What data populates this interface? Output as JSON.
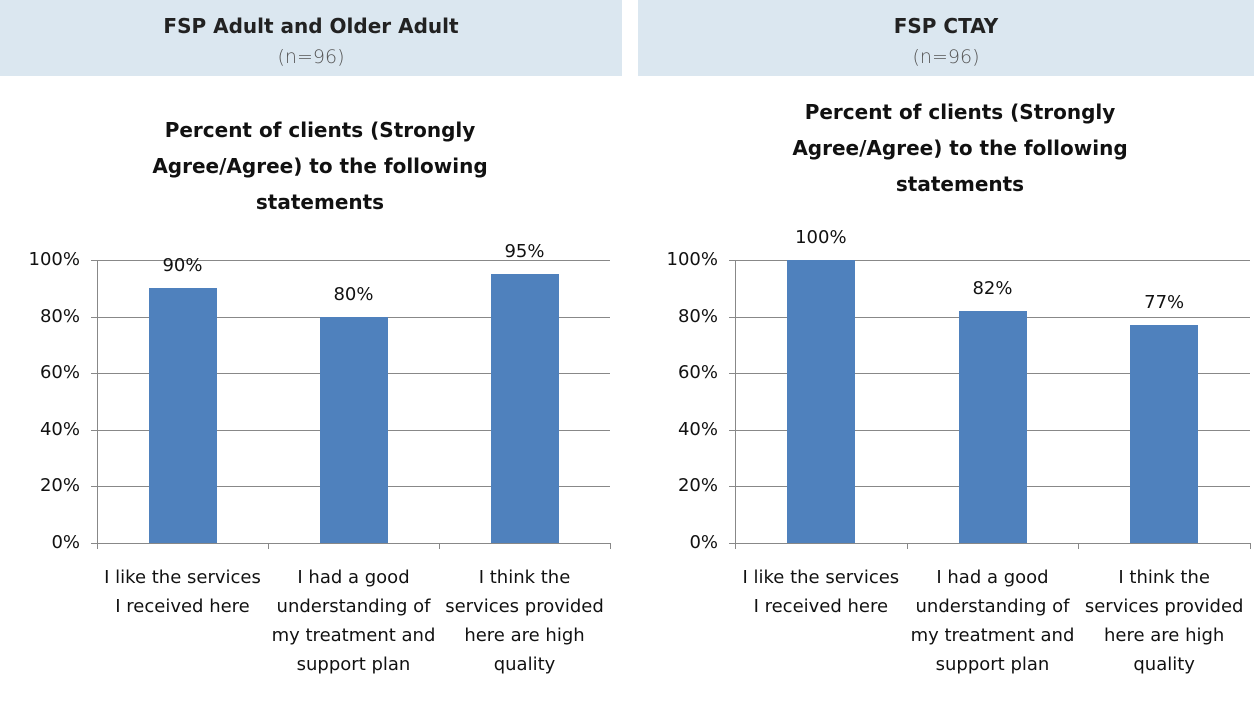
{
  "chart_data": [
    {
      "type": "bar",
      "panel_title": "FSP Adult and Older Adult",
      "panel_subtitle": "(n=96)",
      "title": "Percent of clients (Strongly Agree/Agree) to the following statements",
      "categories": [
        "I like the services I received here",
        "I had a good understanding of my treatment and support plan",
        "I think the services provided here are high quality"
      ],
      "values": [
        90,
        80,
        95
      ],
      "value_labels": [
        "90%",
        "80%",
        "95%"
      ],
      "color": "#4f81bd",
      "ylim": [
        0,
        100
      ],
      "yticks": [
        {
          "value": 0,
          "label": "0%"
        },
        {
          "value": 20,
          "label": "20%"
        },
        {
          "value": 40,
          "label": "40%"
        },
        {
          "value": 60,
          "label": "60%"
        },
        {
          "value": 80,
          "label": "80%"
        },
        {
          "value": 100,
          "label": "100%"
        }
      ],
      "grid": true
    },
    {
      "type": "bar",
      "panel_title": "FSP CTAY",
      "panel_subtitle": "(n=96)",
      "title": "Percent of clients (Strongly Agree/Agree) to the following statements",
      "categories": [
        "I like the services I received here",
        "I had a good understanding of my treatment and support plan",
        "I think the services provided here are high quality"
      ],
      "values": [
        100,
        82,
        77
      ],
      "value_labels": [
        "100%",
        "82%",
        "77%"
      ],
      "color": "#4f81bd",
      "ylim": [
        0,
        100
      ],
      "yticks": [
        {
          "value": 0,
          "label": "0%"
        },
        {
          "value": 20,
          "label": "20%"
        },
        {
          "value": 40,
          "label": "40%"
        },
        {
          "value": 60,
          "label": "60%"
        },
        {
          "value": 80,
          "label": "80%"
        },
        {
          "value": 100,
          "label": "100%"
        }
      ],
      "grid": true
    }
  ]
}
